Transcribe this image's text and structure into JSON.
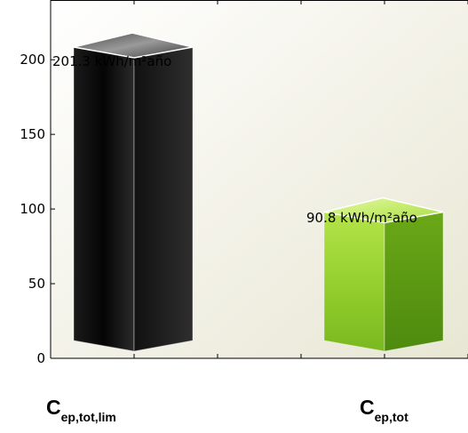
{
  "chart_data": {
    "type": "bar",
    "style": "3d-box",
    "categories": [
      {
        "main": "C",
        "sub": "ep,tot,lim"
      },
      {
        "main": "C",
        "sub": "ep,tot"
      }
    ],
    "values": [
      201.3,
      90.8
    ],
    "data_labels": [
      "201.3  kWh/m²año",
      "90.8  kWh/m²año"
    ],
    "ylim": [
      0,
      240
    ],
    "yticks": [
      0,
      50,
      100,
      150,
      200
    ],
    "ytick_labels": [
      "0",
      "50",
      "100",
      "150",
      "200"
    ],
    "xlim": [
      0,
      5
    ],
    "x_positions": [
      1,
      4
    ],
    "xticks": [
      1,
      2,
      3,
      4,
      5
    ],
    "grid": false,
    "colors": {
      "bar_1_front": "#0c0c0c",
      "bar_1_side": "#1c1c1c",
      "bar_1_top": "#7a7a7a",
      "bar_2_front": "#8fcc2a",
      "bar_2_side": "#5e9a14",
      "bar_2_top": "#cdf07e",
      "background_light": "#ffffff",
      "background_dark": "#e8e6d3"
    }
  }
}
